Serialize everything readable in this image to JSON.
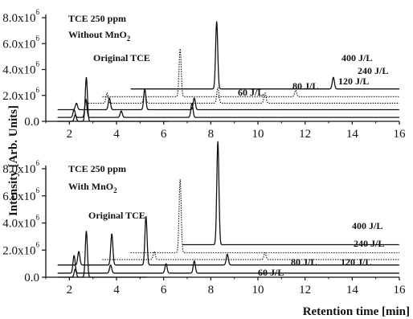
{
  "figure": {
    "ylabel": "Intensity [Arb. Units]",
    "xlabel": "Retention time [min]"
  },
  "chart_data": [
    {
      "type": "line",
      "title": "TCE 250 ppm",
      "subtitle_prefix": "Without MnO",
      "subtitle_sub": "2",
      "annotation": "Original TCE",
      "ylim": [
        0,
        8000000
      ],
      "xlim": [
        1,
        16
      ],
      "yticks": [
        0,
        2000000,
        4000000,
        6000000,
        8000000
      ],
      "ytick_mant": [
        "0.0",
        "2.0x10",
        "4.0x10",
        "6.0x10",
        "8.0x10"
      ],
      "ytick_exp": [
        "",
        "6",
        "6",
        "6",
        "6"
      ],
      "xticks": [
        2,
        4,
        6,
        8,
        10,
        12,
        14,
        16
      ],
      "series": [
        {
          "name": "Original TCE",
          "baseline": 0,
          "x_start": 1.5,
          "x_end": 6.2,
          "line": "solid",
          "peaks": [
            [
              2.25,
              500000
            ],
            [
              2.72,
              3400000
            ]
          ]
        },
        {
          "name": "60 J/L",
          "baseline": 300000,
          "x_start": 1.5,
          "x_end": 16,
          "line": "solid",
          "peaks": [
            [
              2.2,
              600000
            ],
            [
              2.7,
              1400000
            ],
            [
              4.2,
              500000
            ],
            [
              7.2,
              1100000
            ]
          ]
        },
        {
          "name": "80 J/L",
          "baseline": 900000,
          "x_start": 1.5,
          "x_end": 16,
          "line": "solid",
          "peaks": [
            [
              2.3,
              500000
            ],
            [
              3.7,
              900000
            ],
            [
              5.2,
              1600000
            ],
            [
              7.3,
              900000
            ]
          ]
        },
        {
          "name": "120 J/L",
          "baseline": 1400000,
          "x_start": 2.8,
          "x_end": 16,
          "line": "dotted",
          "peaks": [
            [
              3.6,
              800000
            ],
            [
              5.2,
              1000000
            ],
            [
              8.3,
              1200000
            ],
            [
              10.3,
              800000
            ]
          ]
        },
        {
          "name": "240 J/L",
          "baseline": 1900000,
          "x_start": 3.4,
          "x_end": 16,
          "line": "dotted",
          "peaks": [
            [
              6.7,
              3700000
            ],
            [
              11.6,
              500000
            ]
          ]
        },
        {
          "name": "400 J/L",
          "baseline": 2500000,
          "x_start": 4.6,
          "x_end": 16,
          "line": "solid",
          "peaks": [
            [
              8.25,
              5200000
            ],
            [
              13.2,
              900000
            ]
          ]
        }
      ],
      "labels": [
        "400 J/L",
        "240 J/L",
        "120 J/L",
        "80 J/L",
        "60 J/L"
      ]
    },
    {
      "type": "line",
      "title": "TCE 250 ppm",
      "subtitle_prefix": "With MnO",
      "subtitle_sub": "2",
      "annotation": "Original TCE",
      "ylim": [
        0,
        8000000
      ],
      "xlim": [
        1,
        16
      ],
      "yticks": [
        0,
        2000000,
        4000000,
        6000000,
        8000000
      ],
      "ytick_mant": [
        "0.0",
        "2.0x10",
        "4.0x10",
        "6.0x10",
        "8.0x10"
      ],
      "ytick_exp": [
        "",
        "6",
        "6",
        "6",
        "6"
      ],
      "xticks": [
        2,
        4,
        6,
        8,
        10,
        12,
        14,
        16
      ],
      "series": [
        {
          "name": "Original TCE",
          "baseline": 0,
          "x_start": 1.5,
          "x_end": 5.3,
          "line": "solid",
          "peaks": [
            [
              2.25,
              600000
            ],
            [
              2.72,
              3400000
            ]
          ]
        },
        {
          "name": "60 J/L",
          "baseline": 300000,
          "x_start": 1.5,
          "x_end": 16,
          "line": "solid",
          "peaks": [
            [
              2.2,
              1300000
            ],
            [
              3.75,
              600000
            ],
            [
              6.1,
              700000
            ],
            [
              7.3,
              900000
            ]
          ]
        },
        {
          "name": "80 J/L",
          "baseline": 900000,
          "x_start": 1.5,
          "x_end": 16,
          "line": "solid",
          "peaks": [
            [
              2.4,
              1000000
            ],
            [
              3.8,
              2300000
            ],
            [
              5.25,
              3600000
            ],
            [
              8.7,
              800000
            ]
          ]
        },
        {
          "name": "120 J/L",
          "baseline": 1300000,
          "x_start": 3.4,
          "x_end": 16,
          "line": "dotted",
          "peaks": [
            [
              5.6,
              600000
            ],
            [
              10.3,
              500000
            ]
          ]
        },
        {
          "name": "240 J/L",
          "baseline": 1800000,
          "x_start": 4.6,
          "x_end": 16,
          "line": "dotted",
          "peaks": [
            [
              6.7,
              5400000
            ]
          ]
        },
        {
          "name": "400 J/L",
          "baseline": 2400000,
          "x_start": 6.8,
          "x_end": 16,
          "line": "solid",
          "peaks": [
            [
              8.3,
              7600000
            ]
          ]
        }
      ],
      "labels": [
        "400 J/L",
        "240 J/L",
        "120 J/L",
        "80 J/L",
        "60 J/L"
      ]
    }
  ]
}
